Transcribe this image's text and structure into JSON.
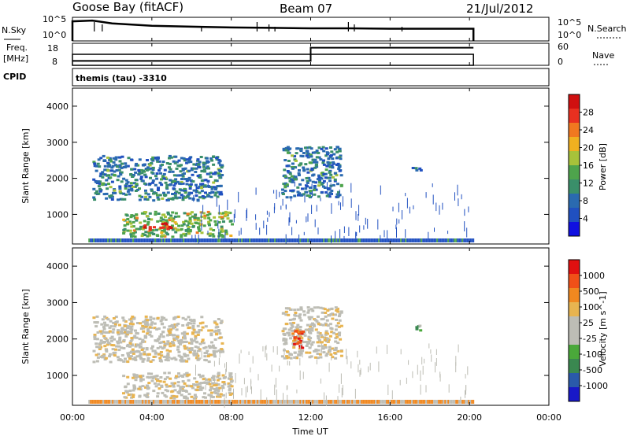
{
  "header": {
    "station": "Goose Bay (fitACF)",
    "beam": "Beam 07",
    "date": "21/Jul/2012"
  },
  "left_labels": {
    "nsky": "N.Sky",
    "freq_line1": "Freq.",
    "freq_line2": "[MHz]",
    "cpid": "CPID"
  },
  "right_labels": {
    "nsearch": "N.Search",
    "nave": "Nave"
  },
  "mode_label": "themis (tau) -3310",
  "colors": {
    "power_scale": [
      "#1010e0",
      "#2050c0",
      "#2a6ab0",
      "#3a8f6a",
      "#4ea44c",
      "#a7c23a",
      "#f0b020",
      "#f07820",
      "#e83020",
      "#d01010"
    ],
    "velocity_scale": [
      "#e01010",
      "#f05018",
      "#f08820",
      "#e8b450",
      "#bdbdb5",
      "#bdbdb5",
      "#4aa83a",
      "#3a8850",
      "#2a5aaa",
      "#1818c8"
    ]
  },
  "chart_data": [
    {
      "type": "line",
      "name": "nsky-panel",
      "ylabel": "N.Sky",
      "right_label": "N.Search",
      "yticks_left": [
        "10^5",
        "10^0"
      ],
      "yticks_right": [
        "10^5",
        "10^0"
      ],
      "xlim": [
        0,
        24
      ],
      "series": [
        {
          "x": [
            0,
            1,
            2,
            3,
            4,
            6,
            8,
            10,
            12,
            14,
            16,
            18,
            20.2
          ],
          "y": [
            4.4,
            4.6,
            3.9,
            3.6,
            3.3,
            3.1,
            2.9,
            2.8,
            2.7,
            2.7,
            2.6,
            2.6,
            2.6
          ]
        }
      ]
    },
    {
      "type": "line",
      "name": "freq-panel",
      "ylabel": "Freq. [MHz]",
      "right_label": "Nave",
      "yticks_left": [
        "18",
        "8"
      ],
      "yticks_right": [
        "60",
        "0"
      ],
      "xlim": [
        0,
        24
      ],
      "series": [
        {
          "x": [
            0,
            12,
            12,
            20.2
          ],
          "y": [
            10,
            10,
            16,
            16
          ]
        }
      ]
    },
    {
      "type": "heatmap",
      "name": "power-panel",
      "ylabel": "Slant Range [km]",
      "yticks": [
        "1000",
        "2000",
        "3000",
        "4000"
      ],
      "ylim": [
        180,
        4500
      ],
      "xlim": [
        0,
        24
      ],
      "colorbar_label": "Power [dB]",
      "colorbar_ticks": [
        "4",
        "8",
        "12",
        "16",
        "20",
        "24",
        "28"
      ],
      "features": [
        {
          "x": [
            1.0,
            7.5
          ],
          "y": [
            1400,
            2650
          ],
          "level": 2
        },
        {
          "x": [
            10.5,
            13.5
          ],
          "y": [
            1500,
            2900
          ],
          "level": 2
        },
        {
          "x": [
            2.5,
            8.0
          ],
          "y": [
            400,
            1100
          ],
          "level": 4
        },
        {
          "x": [
            3.5,
            5.0
          ],
          "y": [
            600,
            800
          ],
          "level": 8
        },
        {
          "x": [
            17.0,
            17.5
          ],
          "y": [
            2250,
            2400
          ],
          "level": 2
        }
      ]
    },
    {
      "type": "heatmap",
      "name": "velocity-panel",
      "ylabel": "Slant Range [km]",
      "yticks": [
        "1000",
        "2000",
        "3000",
        "4000"
      ],
      "ylim": [
        180,
        4500
      ],
      "xlim": [
        0,
        24
      ],
      "colorbar_label": "Velocity [m s^-1]",
      "colorbar_ticks": [
        "1000",
        "500",
        "100",
        "25",
        "-25",
        "-100",
        "-500",
        "-1000"
      ],
      "xticks": [
        "00:00",
        "04:00",
        "08:00",
        "12:00",
        "16:00",
        "20:00",
        "00:00"
      ],
      "xlabel": "Time UT",
      "features": [
        {
          "x": [
            1.0,
            7.5
          ],
          "y": [
            1400,
            2650
          ],
          "level": 4
        },
        {
          "x": [
            10.5,
            13.5
          ],
          "y": [
            1500,
            2900
          ],
          "level": 4
        },
        {
          "x": [
            2.5,
            8.0
          ],
          "y": [
            400,
            1100
          ],
          "level": 4
        },
        {
          "x": [
            11.0,
            11.6
          ],
          "y": [
            1700,
            2300
          ],
          "level": 1
        },
        {
          "x": [
            17.0,
            17.5
          ],
          "y": [
            2250,
            2400
          ],
          "level": 6
        }
      ]
    }
  ]
}
